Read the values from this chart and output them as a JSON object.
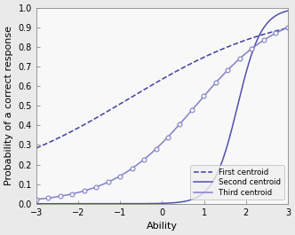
{
  "title": "",
  "xlabel": "Ability",
  "ylabel": "Probability of a correct response",
  "xlim": [
    -3,
    3
  ],
  "ylim": [
    0,
    1
  ],
  "xticks": [
    -3,
    -2,
    -1,
    0,
    1,
    2,
    3
  ],
  "yticks": [
    0,
    0.1,
    0.2,
    0.3,
    0.4,
    0.5,
    0.6,
    0.7,
    0.8,
    0.9,
    1.0
  ],
  "curves": [
    {
      "label": "First centroid",
      "style": "dashed",
      "color": "#4040a0",
      "linewidth": 1.1,
      "marker": null,
      "a": 0.55,
      "b": -0.8,
      "c": 0.07
    },
    {
      "label": "Second centroid",
      "style": "solid",
      "color": "#5050b0",
      "linewidth": 1.1,
      "marker": null,
      "a": 3.5,
      "b": 1.8,
      "c": 0.0
    },
    {
      "label": "Third centroid",
      "style": "solid",
      "color": "#8080cc",
      "linewidth": 1.1,
      "marker": "o",
      "n_markers": 22,
      "markersize": 3.5,
      "a": 1.0,
      "b": 0.8,
      "c": 0.0
    }
  ],
  "legend_loc": "lower right",
  "background_color": "#eaeaea",
  "axes_background": "#f8f8f8",
  "spine_color": "#888888",
  "tick_labelsize": 7,
  "axis_labelsize": 8
}
